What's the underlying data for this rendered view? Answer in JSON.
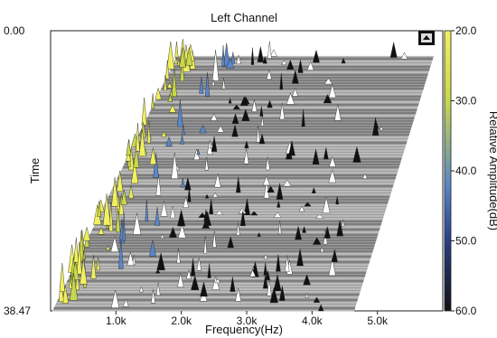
{
  "chart_data": {
    "type": "heatmap",
    "title": "Left Channel",
    "xlabel": "Frequency(Hz)",
    "ylabel": "Time",
    "colorbar_label": "Relative Amplitude(dB)",
    "x_ticks": [
      "1.0k",
      "2.0k",
      "3.0k",
      "4.0k",
      "5.0k"
    ],
    "x_tick_values": [
      1000,
      2000,
      3000,
      4000,
      5000
    ],
    "xlim": [
      0,
      6000
    ],
    "y_ticks": [
      "0.00",
      "38.47"
    ],
    "ylim": [
      0,
      38.47
    ],
    "colorbar_ticks": [
      "20.0",
      "30.0",
      "40.0",
      "50.0",
      "60.0"
    ],
    "colorbar_range": [
      20,
      60
    ],
    "colormap": [
      "#f0f060",
      "#c8d84a",
      "#5a86c8",
      "#2a3e86",
      "#111111"
    ],
    "grid": false
  },
  "toolbar": {
    "button": "view-toggle-icon"
  },
  "colors": {
    "background": "#ffffff",
    "plot_fill": "#9a9a9a",
    "line": "#111111"
  }
}
